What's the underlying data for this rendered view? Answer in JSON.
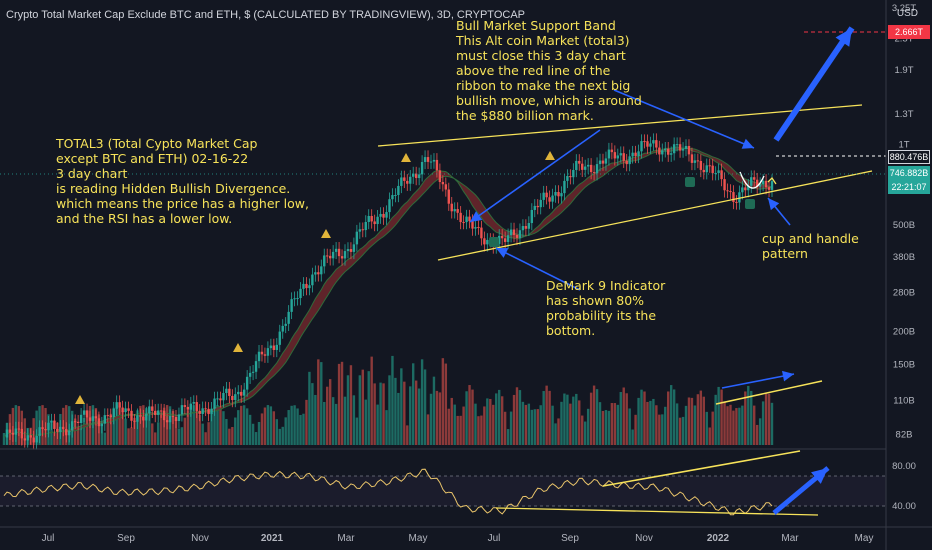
{
  "title": "Crypto Total Market Cap Exclude BTC and ETH, $ (CALCULATED BY TRADINGVIEW), 3D, CRYPTOCAP",
  "currency": "USD",
  "price_axis_labels": [
    "3.25T",
    "2.5T",
    "1.9T",
    "1.3T",
    "1T",
    "500B",
    "380B",
    "280B",
    "200B",
    "150B",
    "110B",
    "82B"
  ],
  "price_tags": {
    "target": "2.666T",
    "band": "880.476B",
    "last": "746.882B",
    "countdown": "22:21:07"
  },
  "rsi_axis_labels": [
    "80.00",
    "40.00"
  ],
  "time_axis_labels": [
    "Jul",
    "Sep",
    "Nov",
    "2021",
    "Mar",
    "May",
    "Jul",
    "Sep",
    "Nov",
    "2022",
    "Mar",
    "May"
  ],
  "notes": {
    "analysis": "TOTAL3 (Total Cypto Market Cap\nexcept BTC and ETH) 02-16-22\n 3 day chart\nis reading Hidden Bullish Divergence.\nwhich means the price has a higher low,\nand the RSI has a lower low.",
    "support_band": "Bull Market Support Band\nThis Alt coin Market (total3)\nmust close this 3 day chart\nabove the red line of the\nribbon to make the next big\nbullish move, which is around\nthe $880 billion mark.",
    "demark": "DeMark 9 Indicator\nhas shown 80%\nprobability its the\nbottom.",
    "cup": "cup and handle\npattern"
  },
  "colors": {
    "background": "#131722",
    "up": "#26a69a",
    "down": "#ef5350",
    "annotation": "#f7e35a",
    "arrow": "#2962ff",
    "rsi": "#e9c46a",
    "target": "#f23645"
  },
  "chart_data": {
    "type": "line",
    "title": "Crypto Total Market Cap Exclude BTC and ETH, $ (CALCULATED BY TRADINGVIEW), 3D, CRYPTOCAP",
    "yscale": "log",
    "ylim": [
      75,
      3250
    ],
    "x": [
      "2020-06",
      "2020-07",
      "2020-08",
      "2020-09",
      "2020-10",
      "2020-11",
      "2020-12",
      "2021-01",
      "2021-02",
      "2021-03",
      "2021-04",
      "2021-05",
      "2021-06",
      "2021-07",
      "2021-08",
      "2021-09",
      "2021-10",
      "2021-11",
      "2021-12",
      "2022-01",
      "2022-02"
    ],
    "series": [
      {
        "values": [
          80,
          84,
          92,
          100,
          96,
          102,
          115,
          180,
          330,
          420,
          600,
          900,
          500,
          420,
          600,
          820,
          900,
          1000,
          900,
          650,
          747
        ]
      }
    ],
    "rsi_values": [
      52,
      58,
      62,
      55,
      56,
      60,
      68,
      72,
      70,
      60,
      65,
      75,
      40,
      38,
      58,
      66,
      62,
      60,
      48,
      36,
      44
    ],
    "price_levels": {
      "target": "2.666T",
      "support_band": "880.476B",
      "last": "746.882B"
    }
  }
}
